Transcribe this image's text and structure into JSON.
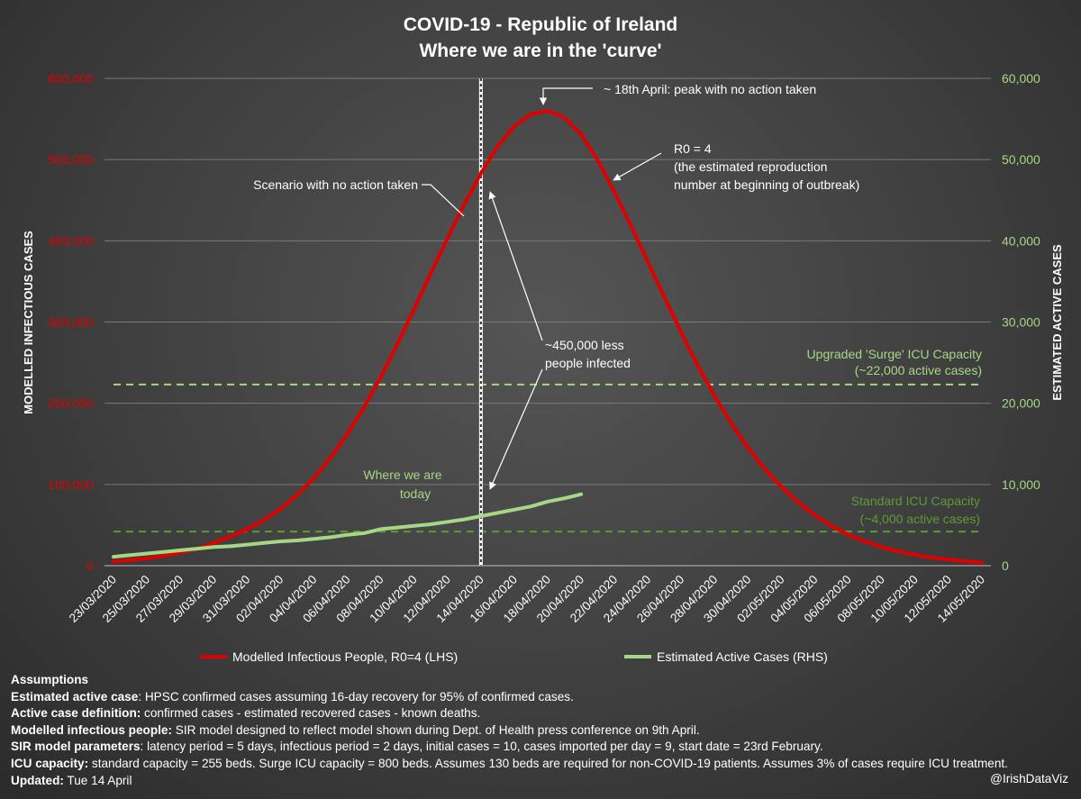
{
  "chart_data": {
    "type": "line",
    "title": "COVID-19 - Republic of Ireland",
    "subtitle": "Where we are in the 'curve'",
    "ylabel_left": "MODELLED INFECTIOUS CASES",
    "ylabel_right": "ESTIMATED ACTIVE CASES",
    "ylim_left": [
      0,
      600000
    ],
    "ylim_right": [
      0,
      60000
    ],
    "yticks_left": [
      "0",
      "100,000",
      "200,000",
      "300,000",
      "400,000",
      "500,000",
      "600,000"
    ],
    "yticks_right": [
      "0",
      "10,000",
      "20,000",
      "30,000",
      "40,000",
      "50,000",
      "60,000"
    ],
    "x_start": "23/03/2020",
    "x_end": "14/05/2020",
    "xticks": [
      "23/03/2020",
      "25/03/2020",
      "27/03/2020",
      "29/03/2020",
      "31/03/2020",
      "02/04/2020",
      "04/04/2020",
      "06/04/2020",
      "08/04/2020",
      "10/04/2020",
      "12/04/2020",
      "14/04/2020",
      "16/04/2020",
      "18/04/2020",
      "20/04/2020",
      "22/04/2020",
      "24/04/2020",
      "26/04/2020",
      "28/04/2020",
      "30/04/2020",
      "02/05/2020",
      "04/05/2020",
      "06/05/2020",
      "08/05/2020",
      "10/05/2020",
      "12/05/2020",
      "14/05/2020"
    ],
    "grid": true,
    "legend_position": "bottom",
    "series": [
      {
        "name": "Modelled Infectious People, R0=4 (LHS)",
        "axis": "left",
        "color": "#e00000",
        "values": [
          5000,
          7000,
          9000,
          12000,
          16000,
          21000,
          28000,
          36000,
          45000,
          56000,
          70000,
          87000,
          108000,
          133000,
          162000,
          195000,
          232000,
          273000,
          316000,
          360000,
          403000,
          445000,
          483000,
          516000,
          541000,
          556000,
          560000,
          552000,
          531000,
          499000,
          460000,
          418000,
          374000,
          330000,
          287000,
          246000,
          209000,
          175000,
          145000,
          119000,
          97000,
          78000,
          62000,
          49000,
          38000,
          30000,
          23000,
          17500,
          13500,
          10000,
          7500,
          5500,
          3500
        ]
      },
      {
        "name": "Estimated Active Cases (RHS)",
        "axis": "right",
        "color": "#a6d785",
        "values": [
          1100,
          1300,
          1500,
          1700,
          1900,
          2100,
          2300,
          2400,
          2600,
          2800,
          3000,
          3100,
          3300,
          3500,
          3800,
          4000,
          4500,
          4700,
          4900,
          5100,
          5400,
          5700,
          6100,
          6500,
          6900,
          7300,
          7900,
          8300,
          8800
        ]
      }
    ],
    "reference_lines": [
      {
        "axis": "right",
        "value": 22300,
        "color": "#a6d785",
        "label_line1": "Upgraded 'Surge' ICU Capacity",
        "label_line2": "(~22,000 active cases)"
      },
      {
        "axis": "right",
        "value": 4200,
        "color": "#5e9a34",
        "label_line1": "Standard ICU Capacity",
        "label_line2": "(~4,000 active cases)"
      }
    ],
    "today_marker": "14/04/2020",
    "annotations": {
      "peak": "~ 18th April: peak with no action taken",
      "r0_line1": "R0 = 4",
      "r0_line2": "(the estimated reproduction",
      "r0_line3": "number at beginning of outbreak)",
      "scenario": "Scenario with no action taken",
      "less_line1": "~450,000 less",
      "less_line2": "people infected",
      "today_line1": "Where we are",
      "today_line2": "today"
    }
  },
  "footer": {
    "heading": "Assumptions",
    "rows": [
      {
        "bold": "Estimated active case",
        "text": ": HPSC confirmed cases assuming 16-day recovery for 95% of confirmed cases."
      },
      {
        "bold": "Active case definition:",
        "text": " confirmed cases - estimated recovered cases - known deaths."
      },
      {
        "bold": "Modelled infectious people:",
        "text": " SIR model designed to reflect model shown during Dept. of Health press conference on 9th April."
      },
      {
        "bold": "SIR model parameters",
        "text": ": latency period = 5 days, infectious period = 2 days, initial cases = 10, cases imported per day = 9, start date = 23rd February."
      },
      {
        "bold": "ICU capacity:",
        "text": " standard capacity = 255 beds. Surge ICU capacity = 800 beds. Assumes 130 beds are required for non-COVID-19 patients. Assumes 3% of cases require ICU treatment."
      },
      {
        "bold": "Updated:",
        "text": " Tue 14 April"
      }
    ],
    "credit": "@IrishDataViz"
  }
}
